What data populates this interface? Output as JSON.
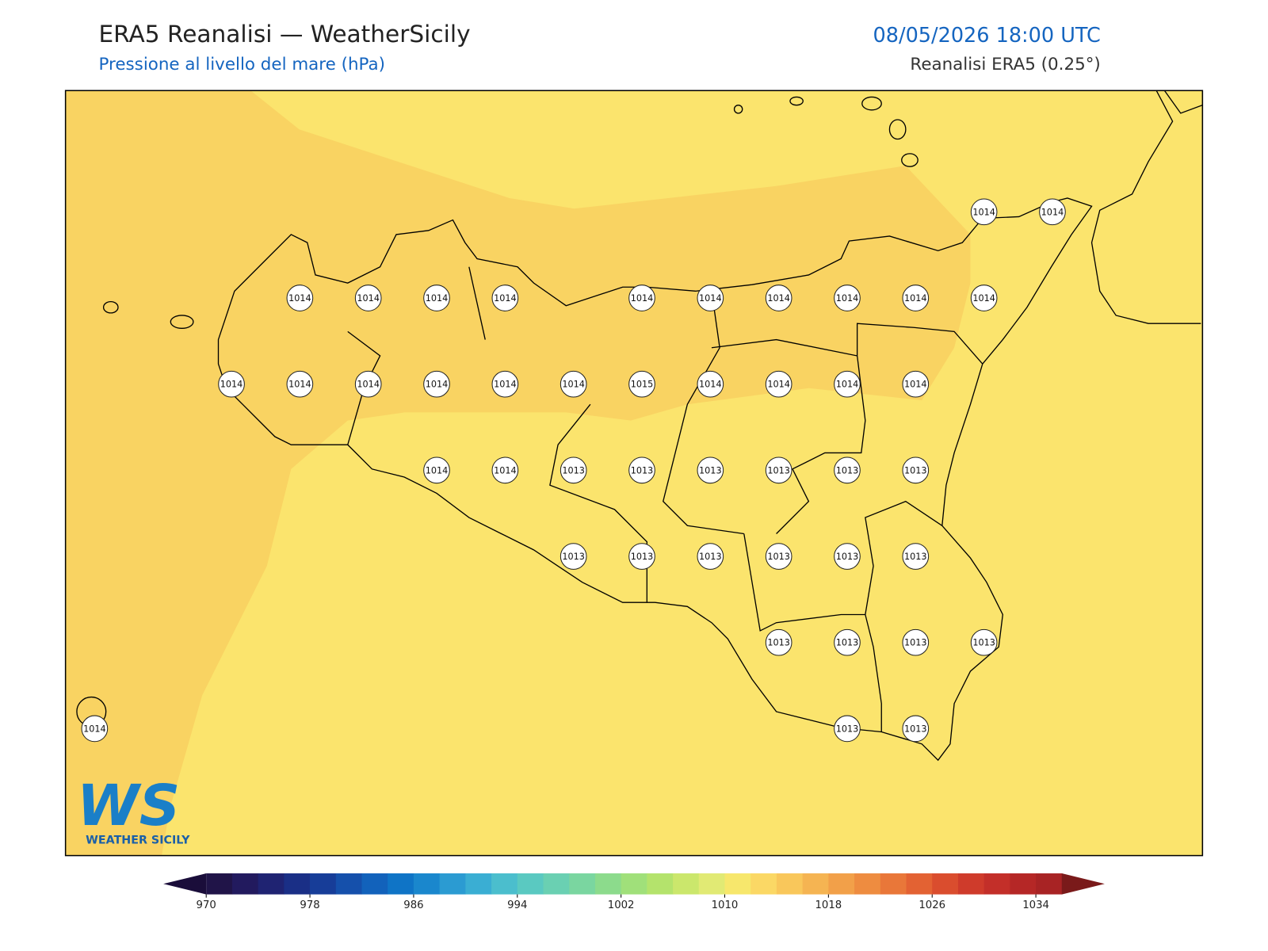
{
  "header": {
    "title": "ERA5 Reanalisi — WeatherSicily",
    "subtitle": "Pressione al livello del mare (hPa)",
    "datetime": "08/05/2026 18:00 UTC",
    "source": "Reanalisi ERA5 (0.25°)"
  },
  "map": {
    "grid": [
      [
        null,
        null,
        null,
        null,
        null,
        null,
        null,
        null,
        null,
        null,
        null,
        null,
        null,
        1014,
        1014
      ],
      [
        null,
        null,
        null,
        1014,
        1014,
        1014,
        1014,
        null,
        1014,
        1014,
        1014,
        1014,
        1014,
        1014,
        null
      ],
      [
        null,
        null,
        1014,
        1014,
        1014,
        1014,
        1014,
        1014,
        1015,
        1014,
        1014,
        1014,
        1014,
        null,
        null
      ],
      [
        null,
        null,
        null,
        null,
        null,
        1014,
        1014,
        1013,
        1013,
        1013,
        1013,
        1013,
        1013,
        null,
        null
      ],
      [
        null,
        null,
        null,
        null,
        null,
        null,
        null,
        1013,
        1013,
        1013,
        1013,
        1013,
        1013,
        null,
        null
      ],
      [
        null,
        null,
        null,
        null,
        null,
        null,
        null,
        null,
        null,
        null,
        1013,
        1013,
        1013,
        1013,
        null
      ],
      [
        1014,
        null,
        null,
        null,
        null,
        null,
        null,
        null,
        null,
        null,
        null,
        1013,
        1013,
        null,
        null
      ]
    ]
  },
  "colorbar": {
    "lim": [
      970,
      1036
    ],
    "ticks": [
      970,
      978,
      986,
      994,
      1002,
      1010,
      1018,
      1026,
      1034
    ],
    "colors": [
      "#201448",
      "#221a5e",
      "#1f2372",
      "#1a2f86",
      "#173d98",
      "#1550ab",
      "#1262bb",
      "#0f74c6",
      "#1a87cd",
      "#2b9bd2",
      "#3aaed3",
      "#4bbecd",
      "#5ac9c1",
      "#6ad0b2",
      "#7ad6a0",
      "#8cdb8c",
      "#a0e07a",
      "#b4e36c",
      "#cbe76c",
      "#e1ea74",
      "#f7e76c",
      "#fbd865",
      "#f9c75b",
      "#f5b452",
      "#f2a049",
      "#ee8c40",
      "#e97739",
      "#e36233",
      "#da4d2e",
      "#cf3b2b",
      "#c32f29",
      "#b52726",
      "#a82324"
    ],
    "under": "#1a0d3a",
    "over": "#7a1a1a"
  },
  "logo": {
    "initials": "WS",
    "name": "WEATHER SICILY"
  }
}
